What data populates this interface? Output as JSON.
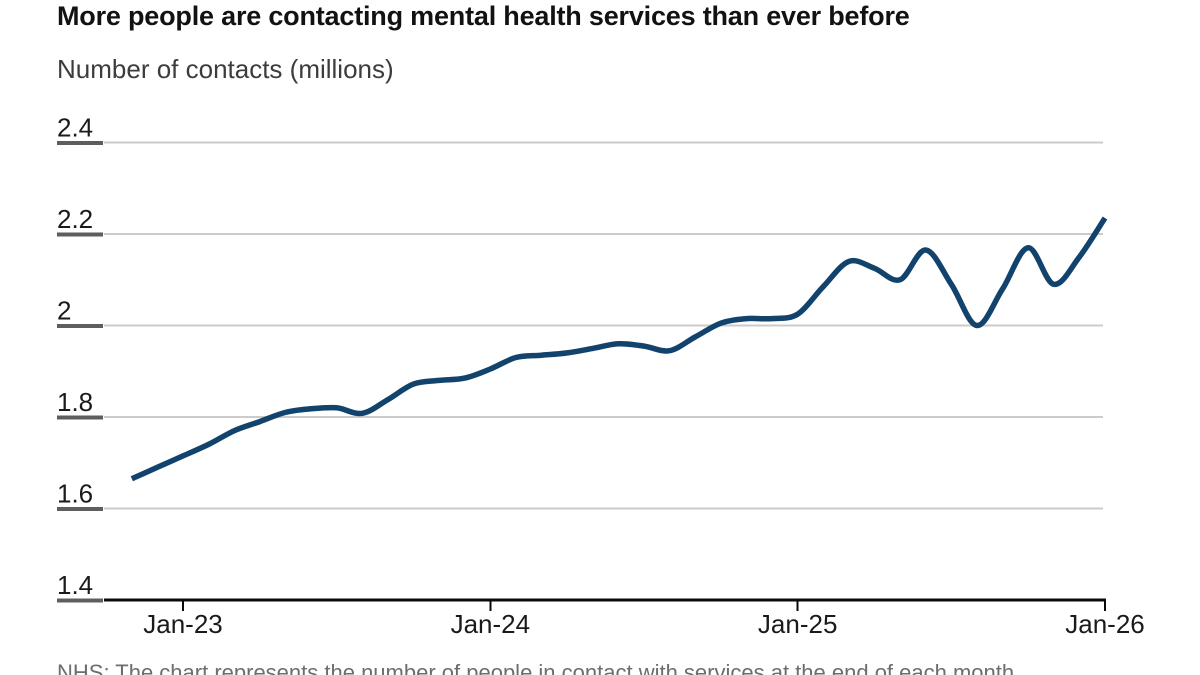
{
  "header": {
    "title": "More people are contacting mental health services than ever before",
    "subtitle": "Number of contacts (millions)"
  },
  "footnote": "NHS: The chart represents the number of people in contact with services at the end of each month",
  "colors": {
    "background": "#ffffff",
    "title_text": "#121212",
    "subtitle_text": "#3c3c3c",
    "tick_label": "#1a1a1a",
    "gridline": "#cbcbcb",
    "tick_stub": "#5e5e5e",
    "axis": "#0a0a0a",
    "line": "#12436D",
    "footnote_text": "#6d6d6d"
  },
  "chart_data": {
    "type": "line",
    "title": "More people are contacting mental health services than ever before",
    "ylabel": "Number of contacts (millions)",
    "xlabel": "",
    "grid": "horizontal",
    "legend": "none",
    "ylim": [
      1.4,
      2.45
    ],
    "y_ticks": [
      1.4,
      1.6,
      1.8,
      2,
      2.2,
      2.4
    ],
    "x_tick_labels": [
      "Jan-23",
      "Jan-24",
      "Jan-25",
      "Jan-26"
    ],
    "x": [
      "Nov-22",
      "Dec-22",
      "Jan-23",
      "Feb-23",
      "Mar-23",
      "Apr-23",
      "May-23",
      "Jun-23",
      "Jul-23",
      "Aug-23",
      "Sep-23",
      "Oct-23",
      "Nov-23",
      "Dec-23",
      "Jan-24",
      "Feb-24",
      "Mar-24",
      "Apr-24",
      "May-24",
      "Jun-24",
      "Jul-24",
      "Aug-24",
      "Sep-24",
      "Oct-24",
      "Nov-24",
      "Dec-24",
      "Jan-25",
      "Feb-25",
      "Mar-25",
      "Apr-25",
      "May-25",
      "Jun-25",
      "Jul-25",
      "Aug-25",
      "Sep-25",
      "Oct-25",
      "Nov-25",
      "Dec-25",
      "Jan-26"
    ],
    "series": [
      {
        "name": "Number of contacts (millions)",
        "values": [
          1.665,
          1.69,
          1.715,
          1.74,
          1.77,
          1.79,
          1.81,
          1.818,
          1.82,
          1.808,
          1.838,
          1.872,
          1.88,
          1.885,
          1.905,
          1.93,
          1.935,
          1.94,
          1.95,
          1.96,
          1.955,
          1.945,
          1.975,
          2.005,
          2.015,
          2.015,
          2.025,
          2.085,
          2.14,
          2.125,
          2.1,
          2.165,
          2.09,
          2.0,
          2.08,
          2.17,
          2.09,
          2.15,
          2.235
        ]
      }
    ]
  }
}
